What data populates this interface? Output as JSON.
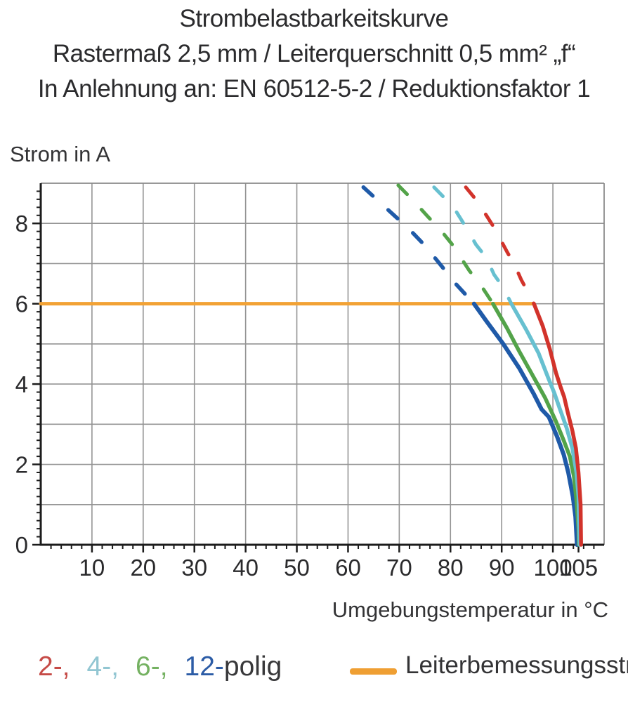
{
  "title": {
    "line1": "Strombelastbarkeitskurve",
    "line2": "Rastermaß 2,5 mm / Leiterquerschnitt 0,5 mm² „f“",
    "line3": "In Anlehnung an: EN 60512-5-2 / Reduktionsfaktor 1"
  },
  "chart_data": {
    "type": "line",
    "title": "Strombelastbarkeitskurve",
    "xlabel": "Umgebungstemperatur in °C",
    "ylabel": "Strom in A",
    "xlim": [
      0,
      110
    ],
    "ylim": [
      0,
      9
    ],
    "grid": "on",
    "x_major_ticks": [
      10,
      20,
      30,
      40,
      50,
      60,
      70,
      80,
      90,
      100,
      105
    ],
    "x_minor_tick_step": 2,
    "y_label_ticks": [
      0,
      2,
      4,
      6,
      8
    ],
    "y_minor_tick_step": 0.2,
    "h_gridlines": [
      1,
      2,
      3,
      4,
      5,
      6,
      7,
      8
    ],
    "v_gridlines": [
      10,
      20,
      30,
      40,
      50,
      60,
      70,
      80,
      90,
      100
    ],
    "reference_line": {
      "name": "Leiterbemessungsstrom",
      "value": 6,
      "x_start": 0,
      "x_end": 96.3,
      "color": "#F2A235"
    },
    "series": [
      {
        "name": "12-polig",
        "color": "#1F5AA8",
        "width": 6,
        "dashed_points": [
          [
            63.0,
            8.9
          ],
          [
            66.0,
            8.55
          ],
          [
            69.0,
            8.2
          ],
          [
            72.0,
            7.85
          ],
          [
            75.0,
            7.45
          ],
          [
            78.0,
            6.98
          ],
          [
            81.0,
            6.5
          ],
          [
            84.6,
            6.0
          ]
        ],
        "solid_points": [
          [
            84.6,
            6.0
          ],
          [
            87.0,
            5.57
          ],
          [
            90.3,
            5.0
          ],
          [
            93.4,
            4.4
          ],
          [
            96.2,
            3.77
          ],
          [
            97.8,
            3.37
          ],
          [
            99.2,
            3.18
          ],
          [
            100.8,
            2.7
          ],
          [
            102.1,
            2.25
          ],
          [
            103.0,
            1.8
          ],
          [
            103.9,
            1.2
          ],
          [
            104.4,
            0.7
          ],
          [
            104.7,
            0.0
          ]
        ]
      },
      {
        "name": "6-polig",
        "color": "#53A349",
        "width": 5.5,
        "dashed_points": [
          [
            69.8,
            8.95
          ],
          [
            72.5,
            8.6
          ],
          [
            75.5,
            8.18
          ],
          [
            78.3,
            7.8
          ],
          [
            80.5,
            7.45
          ],
          [
            83.7,
            6.82
          ],
          [
            86.0,
            6.45
          ],
          [
            88.3,
            6.0
          ]
        ],
        "solid_points": [
          [
            88.3,
            6.0
          ],
          [
            91.0,
            5.4
          ],
          [
            93.4,
            4.82
          ],
          [
            95.9,
            4.25
          ],
          [
            98.5,
            3.65
          ],
          [
            100.5,
            3.1
          ],
          [
            102.1,
            2.6
          ],
          [
            103.3,
            2.2
          ],
          [
            104.1,
            1.7
          ],
          [
            104.6,
            1.1
          ],
          [
            105.0,
            0.4
          ],
          [
            105.05,
            0.0
          ]
        ]
      },
      {
        "name": "4-polig",
        "color": "#67C0D0",
        "width": 5.5,
        "dashed_points": [
          [
            76.8,
            8.9
          ],
          [
            78.7,
            8.65
          ],
          [
            81.1,
            8.3
          ],
          [
            82.8,
            7.95
          ],
          [
            85.0,
            7.47
          ],
          [
            87.0,
            7.15
          ],
          [
            88.5,
            6.73
          ],
          [
            90.3,
            6.4
          ],
          [
            91.9,
            6.0
          ]
        ],
        "solid_points": [
          [
            91.9,
            6.0
          ],
          [
            94.8,
            5.35
          ],
          [
            97.2,
            4.77
          ],
          [
            99.0,
            4.18
          ],
          [
            100.3,
            3.77
          ],
          [
            101.3,
            3.4
          ],
          [
            102.7,
            2.9
          ],
          [
            103.8,
            2.4
          ],
          [
            104.6,
            1.8
          ],
          [
            105.0,
            1.2
          ],
          [
            105.2,
            0.0
          ]
        ]
      },
      {
        "name": "2-polig",
        "color": "#D2332B",
        "width": 5.5,
        "dashed_points": [
          [
            83.0,
            8.9
          ],
          [
            84.6,
            8.65
          ],
          [
            86.9,
            8.22
          ],
          [
            88.5,
            7.9
          ],
          [
            91.1,
            7.28
          ],
          [
            92.6,
            6.95
          ],
          [
            93.8,
            6.6
          ],
          [
            95.3,
            6.25
          ],
          [
            96.3,
            6.0
          ]
        ],
        "solid_points": [
          [
            96.3,
            6.0
          ],
          [
            98.0,
            5.45
          ],
          [
            99.4,
            4.87
          ],
          [
            100.6,
            4.28
          ],
          [
            101.5,
            3.93
          ],
          [
            102.2,
            3.68
          ],
          [
            102.9,
            3.3
          ],
          [
            103.8,
            2.84
          ],
          [
            104.5,
            2.4
          ],
          [
            105.0,
            1.8
          ],
          [
            105.4,
            1.0
          ],
          [
            105.5,
            0.0
          ]
        ]
      }
    ],
    "colors": {
      "grid": "#949494",
      "frame": "#8a8a8a",
      "axis": "#1c1c1c",
      "tick_label": "#2a2a2c"
    }
  },
  "legend": {
    "pole_items": [
      {
        "label": "2-,",
        "color": "#C64B47"
      },
      {
        "label": "4-,",
        "color": "#92C6D2"
      },
      {
        "label": "6-,",
        "color": "#74B161"
      },
      {
        "label": "12-",
        "color": "#2C5CA6"
      }
    ],
    "suffix": "polig",
    "reference": {
      "label": "Leiterbemessungsstrom",
      "color": "#EF9F33"
    }
  }
}
